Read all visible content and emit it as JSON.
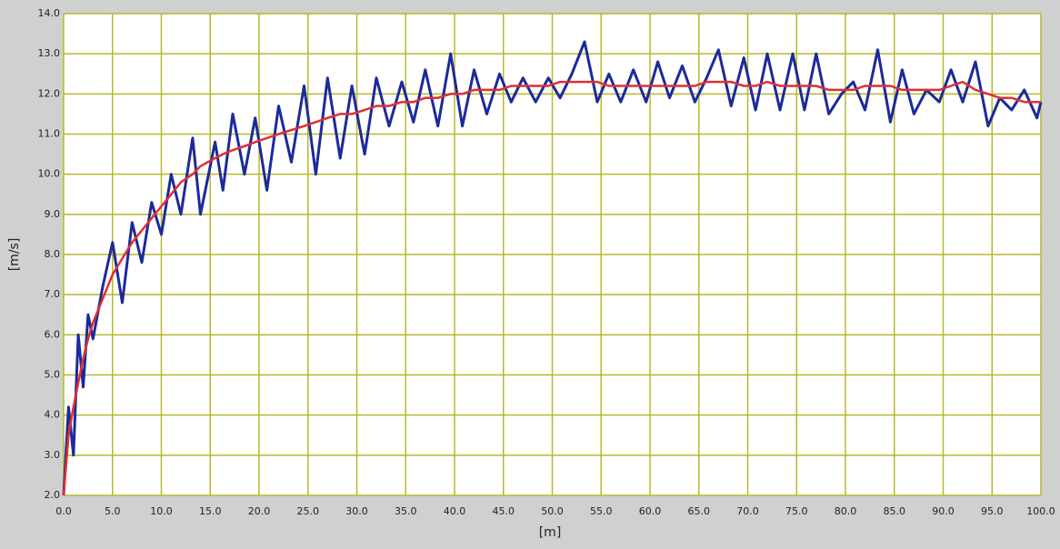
{
  "chart_data": {
    "type": "line",
    "x_label": "[m]",
    "y_label": "[m/s]",
    "xlim": [
      0,
      100
    ],
    "ylim": [
      2,
      14
    ],
    "grid": true,
    "grid_color": "#b8b82a",
    "plot_background": "#ffffff",
    "xticks": [
      {
        "value": 0,
        "label": "0.0"
      },
      {
        "value": 5,
        "label": "5.0"
      },
      {
        "value": 10,
        "label": "10.0"
      },
      {
        "value": 15,
        "label": "15.0"
      },
      {
        "value": 20,
        "label": "20.0"
      },
      {
        "value": 25,
        "label": "25.0"
      },
      {
        "value": 30,
        "label": "30.0"
      },
      {
        "value": 35,
        "label": "35.0"
      },
      {
        "value": 40,
        "label": "40.0"
      },
      {
        "value": 45,
        "label": "45.0"
      },
      {
        "value": 50,
        "label": "50.0"
      },
      {
        "value": 55,
        "label": "55.0"
      },
      {
        "value": 60,
        "label": "60.0"
      },
      {
        "value": 65,
        "label": "65.0"
      },
      {
        "value": 70,
        "label": "70.0"
      },
      {
        "value": 75,
        "label": "75.0"
      },
      {
        "value": 80,
        "label": "80.0"
      },
      {
        "value": 85,
        "label": "85.0"
      },
      {
        "value": 90,
        "label": "90.0"
      },
      {
        "value": 95,
        "label": "95.0"
      },
      {
        "value": 100,
        "label": "100.0"
      }
    ],
    "yticks": [
      {
        "value": 2,
        "label": "2.0"
      },
      {
        "value": 3,
        "label": "3.0"
      },
      {
        "value": 4,
        "label": "4.0"
      },
      {
        "value": 5,
        "label": "5.0"
      },
      {
        "value": 6,
        "label": "6.0"
      },
      {
        "value": 7,
        "label": "7.0"
      },
      {
        "value": 8,
        "label": "8.0"
      },
      {
        "value": 9,
        "label": "9.0"
      },
      {
        "value": 10,
        "label": "10.0"
      },
      {
        "value": 11,
        "label": "11.0"
      },
      {
        "value": 12,
        "label": "12.0"
      },
      {
        "value": 13,
        "label": "13.0"
      },
      {
        "value": 14,
        "label": "14.0"
      }
    ],
    "x": [
      0,
      0.5,
      1.0,
      1.5,
      2.0,
      2.5,
      3.0,
      4.0,
      5.0,
      6.0,
      7.0,
      8.0,
      9.0,
      10.0,
      11.0,
      12.0,
      13.2,
      14.0,
      15.5,
      16.3,
      17.3,
      18.5,
      19.6,
      20.8,
      22.0,
      23.3,
      24.6,
      25.8,
      27.0,
      28.3,
      29.5,
      30.8,
      32.0,
      33.3,
      34.6,
      35.8,
      37.0,
      38.3,
      39.6,
      40.8,
      42.0,
      43.3,
      44.6,
      45.8,
      47.0,
      48.3,
      49.6,
      50.8,
      52.0,
      53.3,
      54.6,
      55.8,
      57.0,
      58.3,
      59.6,
      60.8,
      62.0,
      63.3,
      64.6,
      65.8,
      67.0,
      68.3,
      69.6,
      70.8,
      72.0,
      73.3,
      74.6,
      75.8,
      77.0,
      78.3,
      79.6,
      80.8,
      82.0,
      83.3,
      84.6,
      85.8,
      87.0,
      88.3,
      89.6,
      90.8,
      92.0,
      93.3,
      94.6,
      95.8,
      97.0,
      98.3,
      99.6,
      100
    ],
    "series": [
      {
        "color": "#1c2a9a",
        "values": [
          2.0,
          4.2,
          3.0,
          6.0,
          4.7,
          6.5,
          5.9,
          7.2,
          8.3,
          6.8,
          8.8,
          7.8,
          9.3,
          8.5,
          10.0,
          9.0,
          10.9,
          9.0,
          10.8,
          9.6,
          11.5,
          10.0,
          11.4,
          9.6,
          11.7,
          10.3,
          12.2,
          10.0,
          12.4,
          10.4,
          12.2,
          10.5,
          12.4,
          11.2,
          12.3,
          11.3,
          12.6,
          11.2,
          13.0,
          11.2,
          12.6,
          11.5,
          12.5,
          11.8,
          12.4,
          11.8,
          12.4,
          11.9,
          12.5,
          13.3,
          11.8,
          12.5,
          11.8,
          12.6,
          11.8,
          12.8,
          11.9,
          12.7,
          11.8,
          12.4,
          13.1,
          11.7,
          12.9,
          11.6,
          13.0,
          11.6,
          13.0,
          11.6,
          13.0,
          11.5,
          12.0,
          12.3,
          11.6,
          13.1,
          11.3,
          12.6,
          11.5,
          12.1,
          11.8,
          12.6,
          11.8,
          12.8,
          11.2,
          11.9,
          11.6,
          12.1,
          11.4,
          11.8
        ]
      },
      {
        "color": "#e03030",
        "values": [
          2.0,
          3.5,
          4.2,
          4.8,
          5.4,
          5.9,
          6.3,
          6.9,
          7.5,
          7.9,
          8.3,
          8.6,
          8.9,
          9.2,
          9.5,
          9.8,
          10.0,
          10.2,
          10.4,
          10.5,
          10.6,
          10.7,
          10.8,
          10.9,
          11.0,
          11.1,
          11.2,
          11.3,
          11.4,
          11.5,
          11.5,
          11.6,
          11.7,
          11.7,
          11.8,
          11.8,
          11.9,
          11.9,
          12.0,
          12.0,
          12.1,
          12.1,
          12.1,
          12.2,
          12.2,
          12.2,
          12.2,
          12.3,
          12.3,
          12.3,
          12.3,
          12.2,
          12.2,
          12.2,
          12.2,
          12.2,
          12.2,
          12.2,
          12.2,
          12.3,
          12.3,
          12.3,
          12.2,
          12.2,
          12.3,
          12.2,
          12.2,
          12.2,
          12.2,
          12.1,
          12.1,
          12.1,
          12.2,
          12.2,
          12.2,
          12.1,
          12.1,
          12.1,
          12.1,
          12.2,
          12.3,
          12.1,
          12.0,
          11.9,
          11.9,
          11.8,
          11.8,
          11.8
        ]
      }
    ]
  }
}
